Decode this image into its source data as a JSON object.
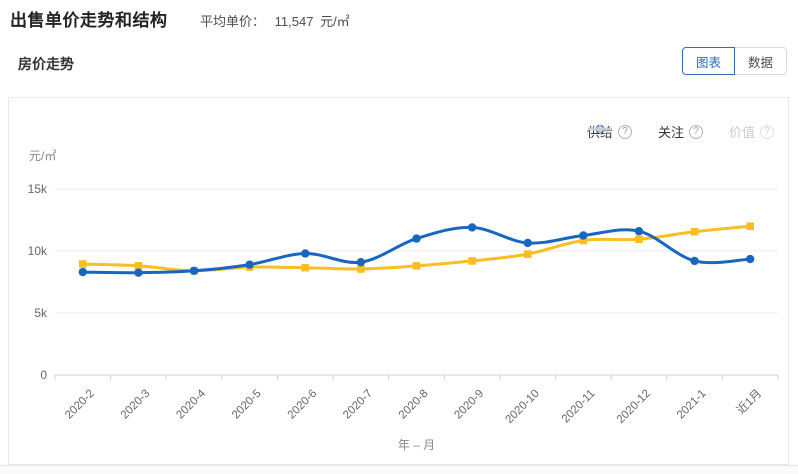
{
  "header": {
    "title": "出售单价走势和结构",
    "avg_price_label": "平均单价：",
    "avg_price_value": "11,547",
    "avg_price_unit": "元/㎡"
  },
  "section": {
    "title": "房价走势"
  },
  "view_toggle": {
    "chart_label": "图表",
    "data_label": "数据",
    "active": "图表"
  },
  "icons": {
    "help": "?"
  },
  "colors": {
    "supply_yellow": "#F9BE21",
    "attention_blue": "#1866C0",
    "value_gray_disabled": "#C9CDD4",
    "accent_blue": "#2E6BC5",
    "grid_line": "#EBEBEB",
    "axis_line": "#C9D2DC",
    "tick_text": "#666666"
  },
  "chart_data": {
    "type": "line",
    "title": "房价走势",
    "xlabel": "年 – 月",
    "ylabel": "元/㎡",
    "categories": [
      "2020-2",
      "2020-3",
      "2020-4",
      "2020-5",
      "2020-6",
      "2020-7",
      "2020-8",
      "2020-9",
      "2020-10",
      "2020-11",
      "2020-12",
      "2021-1",
      "近1月"
    ],
    "series": [
      {
        "name": "供给",
        "color": "#F9BE21",
        "marker": "square",
        "disabled": false,
        "values": [
          8950,
          8800,
          8400,
          8700,
          8650,
          8550,
          8800,
          9200,
          9750,
          10850,
          10950,
          11550,
          12000
        ]
      },
      {
        "name": "关注",
        "color": "#1866C0",
        "marker": "circle",
        "disabled": false,
        "values": [
          8300,
          8250,
          8400,
          8900,
          9800,
          9100,
          11000,
          11900,
          10650,
          11250,
          11600,
          9200,
          9350
        ]
      },
      {
        "name": "价值",
        "color": "#C9CDD4",
        "marker": "diamond",
        "disabled": true,
        "values": []
      }
    ],
    "ylim": [
      0,
      15000
    ],
    "yticks": [
      {
        "label": "0",
        "value": 0
      },
      {
        "label": "5k",
        "value": 5000
      },
      {
        "label": "10k",
        "value": 10000
      },
      {
        "label": "15k",
        "value": 15000
      }
    ],
    "grid": true,
    "smooth": true,
    "legend_position": "top-right"
  }
}
